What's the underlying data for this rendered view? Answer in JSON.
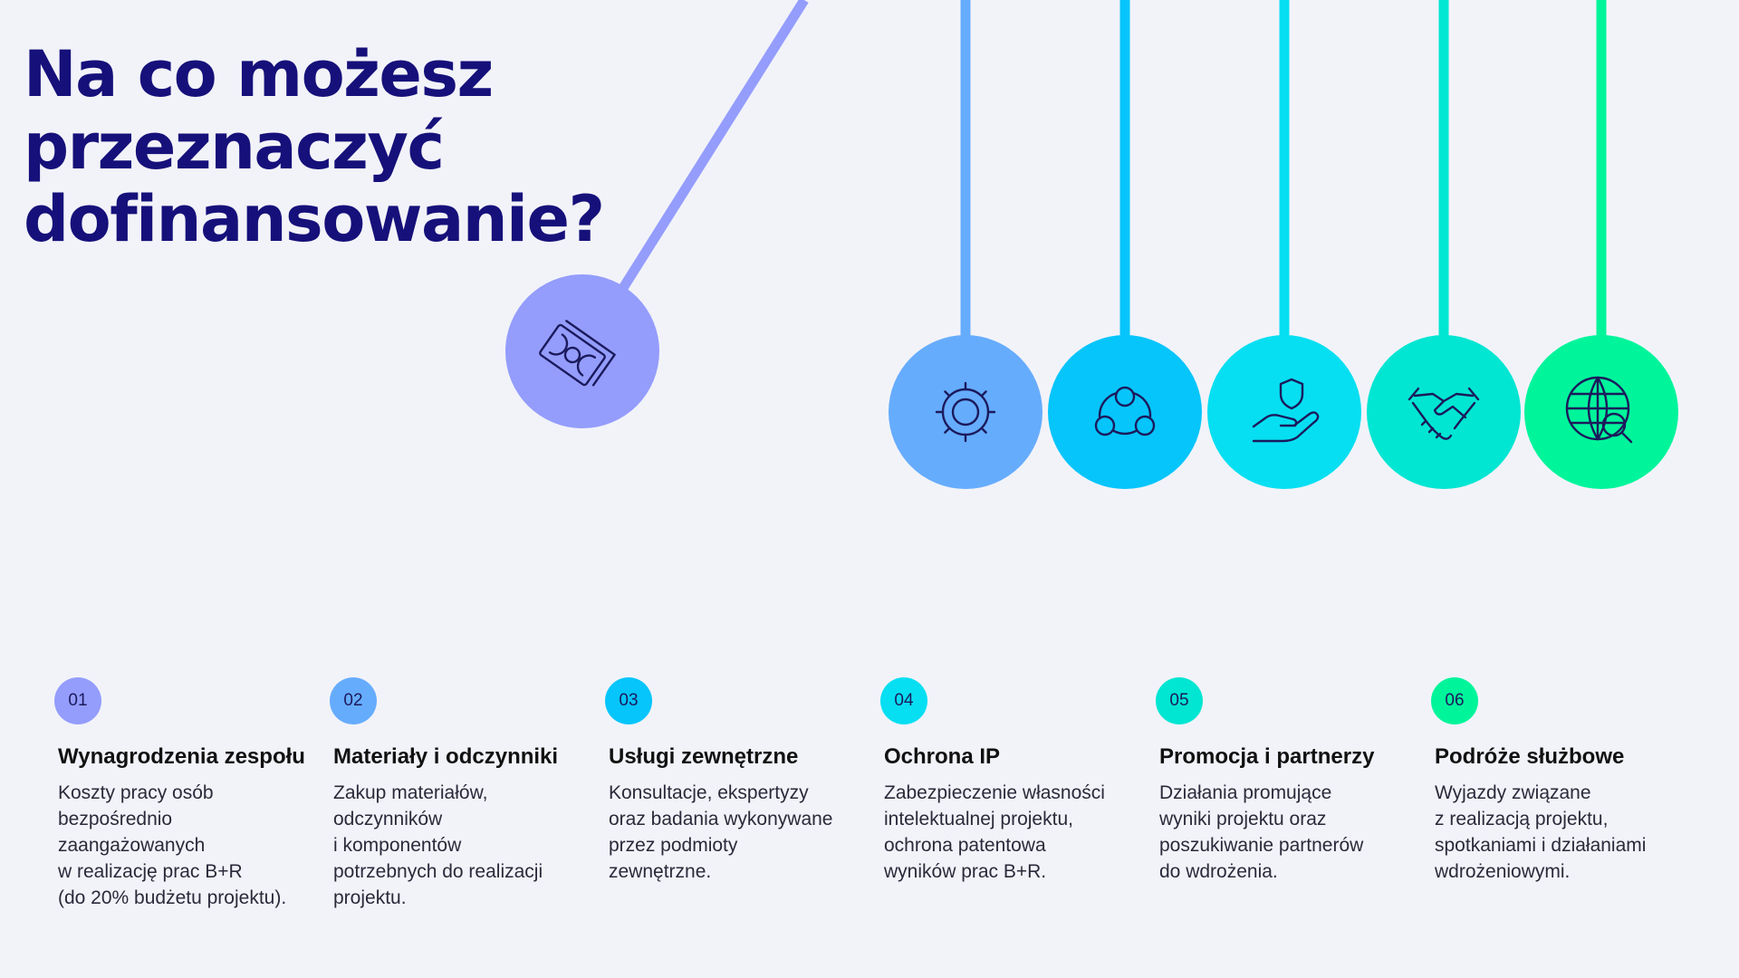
{
  "title": {
    "line1": "Na co możesz",
    "line2": "przeznaczyć",
    "line3": "dofinansowanie?"
  },
  "colors": {
    "violet": "#949dfc",
    "blue": "#66acfd",
    "azure": "#06c5fb",
    "cyan": "#06dff2",
    "teal": "#00e6d2",
    "green": "#00f59b",
    "heading": "#16107a"
  },
  "pendulums": [
    {
      "icon": "money-icon"
    },
    {
      "icon": "gear-icon"
    },
    {
      "icon": "network-icon"
    },
    {
      "icon": "hand-shield-icon"
    },
    {
      "icon": "handshake-icon"
    },
    {
      "icon": "globe-search-icon"
    }
  ],
  "items": [
    {
      "number": "01",
      "title": "Wynagrodzenia zespołu",
      "description": "Koszty pracy osób\nbezpośrednio\nzaangażowanych\nw realizację prac B+R\n(do 20% budżetu projektu)."
    },
    {
      "number": "02",
      "title": "Materiały i odczynniki",
      "description": "Zakup materiałów,\nodczynników\ni komponentów\npotrzebnych do realizacji\nprojektu."
    },
    {
      "number": "03",
      "title": "Usługi zewnętrzne",
      "description": "Konsultacje, ekspertyzy\noraz badania wykonywane\nprzez podmioty\nzewnętrzne."
    },
    {
      "number": "04",
      "title": "Ochrona IP",
      "description": "Zabezpieczenie własności\nintelektualnej projektu,\nochrona patentowa\nwyników prac B+R."
    },
    {
      "number": "05",
      "title": "Promocja i partnerzy",
      "description": "Działania promujące\nwyniki projektu oraz\nposzukiwanie partnerów\ndo wdrożenia."
    },
    {
      "number": "06",
      "title": "Podróże służbowe",
      "description": "Wyjazdy związane\nz realizacją projektu,\nspotkaniami i działaniami\nwdrożeniowymi."
    }
  ]
}
